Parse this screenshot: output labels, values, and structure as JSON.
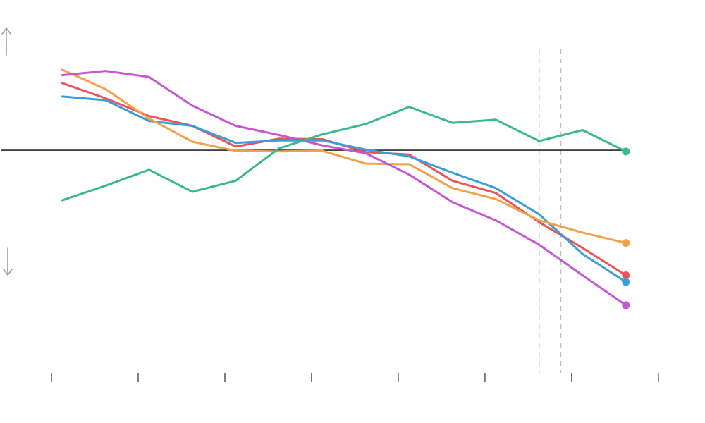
{
  "chart_data": {
    "type": "line",
    "title": "",
    "xlabel": "",
    "ylabel": "",
    "x": [
      1,
      2,
      3,
      4,
      5,
      6,
      7,
      8,
      9,
      10,
      11,
      12,
      13,
      14
    ],
    "xlim": [
      0.75,
      15.5
    ],
    "ylim": [
      -3.65,
      2.0
    ],
    "x_ticks": [
      0.75,
      2.75,
      4.75,
      6.75,
      8.75,
      10.75,
      12.75,
      14.75
    ],
    "vertical_markers": [
      12.0,
      12.5
    ],
    "baseline": 0,
    "grid": false,
    "legend": "none",
    "arrows": [
      "up",
      "down"
    ],
    "series": [
      {
        "color": "#e8545a",
        "values": [
          1.1,
          0.85,
          0.56,
          0.4,
          0.06,
          0.19,
          0.18,
          -0.03,
          -0.07,
          -0.5,
          -0.7,
          -1.18,
          -1.6,
          -2.05
        ]
      },
      {
        "color": "#3a9ed8",
        "values": [
          0.88,
          0.82,
          0.48,
          0.4,
          0.12,
          0.16,
          0.16,
          0.01,
          -0.1,
          -0.37,
          -0.62,
          -1.05,
          -1.7,
          -2.16
        ]
      },
      {
        "color": "#f5a04a",
        "values": [
          1.32,
          1.0,
          0.52,
          0.14,
          -0.01,
          -0.02,
          -0.01,
          -0.22,
          -0.23,
          -0.62,
          -0.8,
          -1.15,
          -1.35,
          -1.52
        ]
      },
      {
        "color": "#c558d2",
        "values": [
          1.23,
          1.3,
          1.2,
          0.73,
          0.4,
          0.25,
          0.08,
          -0.05,
          -0.4,
          -0.85,
          -1.15,
          -1.55,
          -2.05,
          -2.54
        ]
      },
      {
        "color": "#3ab890",
        "values": [
          -0.82,
          -0.58,
          -0.32,
          -0.68,
          -0.5,
          0.03,
          0.26,
          0.43,
          0.71,
          0.45,
          0.5,
          0.15,
          0.33,
          -0.02
        ]
      }
    ]
  }
}
